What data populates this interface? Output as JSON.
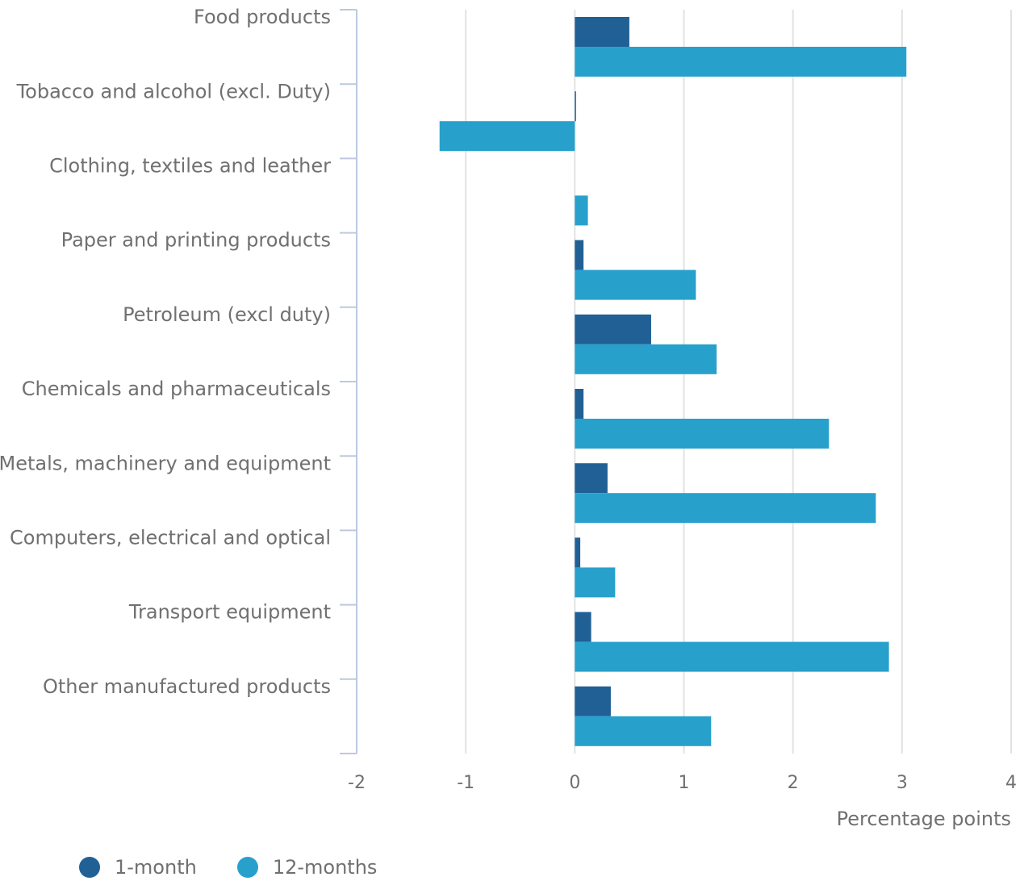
{
  "chart_data": {
    "type": "bar",
    "orientation": "horizontal",
    "title": "",
    "xlabel": "Percentage points",
    "ylabel": "",
    "xlim": [
      -2,
      4
    ],
    "xticks": [
      -2,
      -1,
      0,
      1,
      2,
      3,
      4
    ],
    "grid": true,
    "legend_position": "bottom-left",
    "categories": [
      "Food products",
      "Tobacco and alcohol (excl. Duty)",
      "Clothing, textiles and leather",
      "Paper and printing products",
      "Petroleum (excl duty)",
      "Chemicals and pharmaceuticals",
      "Metals, machinery and equipment",
      "Computers, electrical and optical",
      "Transport equipment",
      "Other manufactured products"
    ],
    "series": [
      {
        "name": "1-month",
        "color": "#206095",
        "values": [
          0.5,
          0.01,
          0,
          0.08,
          0.7,
          0.08,
          0.3,
          0.05,
          0.15,
          0.33
        ]
      },
      {
        "name": "12-months",
        "color": "#27a0cc",
        "values": [
          3.04,
          -1.24,
          0.12,
          1.11,
          1.3,
          2.33,
          2.76,
          0.37,
          2.88,
          1.25
        ]
      }
    ]
  }
}
